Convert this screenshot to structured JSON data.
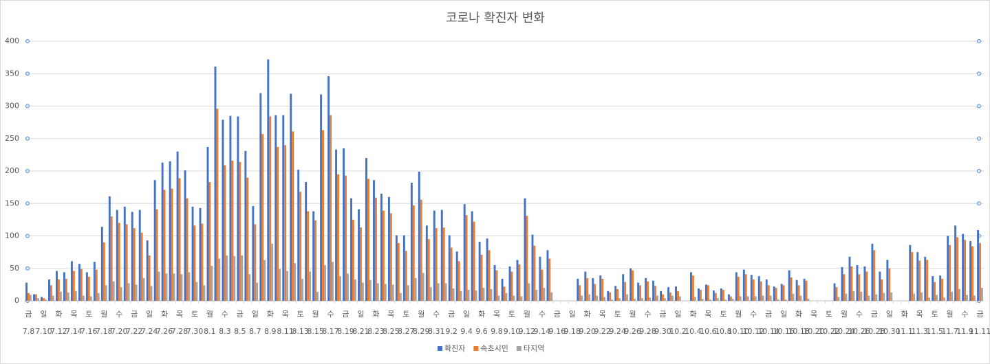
{
  "chart_data": {
    "type": "bar",
    "title": "코로나 확진자 변화",
    "categories": [
      "7.8",
      null,
      "7.10",
      null,
      "7.12",
      null,
      "7.14",
      null,
      "7.16",
      null,
      "7.18",
      null,
      "7.20",
      null,
      "7.22",
      null,
      "7.24",
      null,
      "7.26",
      null,
      "7.28",
      null,
      "7.30",
      null,
      "8.1",
      null,
      "8.3",
      null,
      "8.5",
      null,
      "8.7",
      null,
      "8.9",
      null,
      "8.11",
      null,
      "8.13",
      null,
      "8.15",
      null,
      "8.17",
      null,
      "8.19",
      null,
      "8.21",
      null,
      "8.23",
      null,
      "8.25",
      null,
      "8.27",
      null,
      "8.29",
      null,
      "8.31",
      null,
      "9.2",
      null,
      "9.4",
      null,
      "9.6",
      null,
      "9.8",
      null,
      "9.10",
      null,
      "9.12",
      null,
      "9.14",
      null,
      "9.16",
      null,
      "9.18",
      null,
      "9.20",
      null,
      "9.22",
      null,
      "9.24",
      null,
      "9.26",
      null,
      "9.28",
      null,
      "9.30",
      null,
      "10.2",
      null,
      "10.4",
      null,
      "10.6",
      null,
      "10.8",
      null,
      "10.10",
      null,
      "10.12",
      null,
      "10.14",
      null,
      "10.16",
      null,
      "10.18",
      null,
      "10.20",
      null,
      "10.22",
      null,
      "10.24",
      null,
      "10.26",
      null,
      "10.28",
      null,
      "10.30",
      null,
      "11.1",
      null,
      "11.3",
      null,
      "11.5",
      null,
      "11.7",
      null,
      "11.9",
      null,
      "11.11"
    ],
    "weekdays": [
      "금",
      null,
      "일",
      null,
      "화",
      null,
      "목",
      null,
      "토",
      null,
      "월",
      null,
      "수",
      null,
      "금",
      null,
      "일",
      null,
      "화",
      null,
      "목",
      null,
      "토",
      null,
      "월",
      null,
      "수",
      null,
      "금",
      null,
      "일",
      null,
      "화",
      null,
      "목",
      null,
      "토",
      null,
      "월",
      null,
      "수",
      null,
      "금",
      null,
      "일",
      null,
      "화",
      null,
      "목",
      null,
      "토",
      null,
      "월",
      null,
      "수",
      null,
      "금",
      null,
      "일",
      null,
      "화",
      null,
      "목",
      null,
      "토",
      null,
      "월",
      null,
      "수",
      null,
      "금",
      null,
      "일",
      null,
      "화",
      null,
      "목",
      null,
      "토",
      null,
      "월",
      null,
      "수",
      null,
      "금",
      null,
      "일",
      null,
      "화",
      null,
      "목",
      null,
      "토",
      null,
      "월",
      null,
      "수",
      null,
      "금",
      null,
      "일",
      null,
      "화",
      null,
      "목",
      null,
      "토",
      null,
      "월",
      null,
      "수",
      null,
      "금",
      null,
      "일",
      null,
      "화",
      null,
      "목",
      null,
      "토",
      null,
      "월",
      null,
      "수",
      null,
      "금"
    ],
    "series": [
      {
        "name": "확진자",
        "color": "#4472c4",
        "values": [
          28,
          10,
          6,
          33,
          46,
          44,
          61,
          57,
          44,
          60,
          114,
          161,
          140,
          145,
          137,
          140,
          93,
          186,
          213,
          215,
          230,
          201,
          145,
          143,
          237,
          361,
          279,
          285,
          284,
          231,
          146,
          320,
          372,
          286,
          286,
          319,
          202,
          183,
          138,
          318,
          346,
          233,
          235,
          158,
          141,
          220,
          186,
          165,
          160,
          101,
          101,
          182,
          199,
          116,
          139,
          140,
          101,
          76,
          149,
          138,
          91,
          96,
          55,
          34,
          53,
          63,
          158,
          102,
          68,
          78,
          null,
          null,
          null,
          34,
          45,
          35,
          39,
          15,
          23,
          41,
          50,
          28,
          35,
          31,
          15,
          21,
          22,
          null,
          44,
          19,
          25,
          16,
          19,
          10,
          44,
          48,
          40,
          38,
          33,
          22,
          26,
          47,
          32,
          34,
          null,
          null,
          null,
          27,
          52,
          68,
          55,
          53,
          88,
          45,
          63,
          null,
          null,
          86,
          75,
          68,
          38,
          39,
          100,
          116,
          103,
          92,
          109
        ]
      },
      {
        "name": "속초시민",
        "color": "#ed7d31",
        "values": [
          12,
          10,
          4,
          24,
          33,
          34,
          46,
          49,
          37,
          48,
          90,
          130,
          120,
          118,
          112,
          105,
          70,
          141,
          171,
          173,
          189,
          158,
          116,
          119,
          183,
          296,
          209,
          216,
          214,
          190,
          118,
          257,
          284,
          237,
          240,
          261,
          168,
          138,
          124,
          263,
          286,
          195,
          193,
          125,
          113,
          188,
          159,
          139,
          135,
          89,
          77,
          147,
          156,
          95,
          112,
          113,
          82,
          61,
          132,
          122,
          71,
          78,
          47,
          22,
          45,
          56,
          131,
          85,
          48,
          65,
          null,
          null,
          null,
          24,
          35,
          26,
          34,
          13,
          18,
          29,
          47,
          24,
          30,
          23,
          10,
          13,
          15,
          null,
          39,
          17,
          24,
          12,
          17,
          7,
          37,
          41,
          33,
          30,
          24,
          20,
          24,
          36,
          24,
          31,
          null,
          null,
          null,
          21,
          41,
          53,
          41,
          45,
          78,
          33,
          50,
          null,
          null,
          75,
          62,
          63,
          29,
          34,
          86,
          98,
          94,
          84,
          89
        ]
      },
      {
        "name": "타지역",
        "color": "#a5a5a5",
        "values": [
          9,
          4,
          2,
          8,
          14,
          13,
          15,
          8,
          7,
          12,
          24,
          30,
          21,
          27,
          25,
          35,
          23,
          45,
          42,
          42,
          41,
          44,
          29,
          24,
          54,
          65,
          70,
          69,
          70,
          41,
          28,
          63,
          88,
          49,
          46,
          58,
          34,
          45,
          14,
          55,
          60,
          38,
          42,
          33,
          28,
          32,
          27,
          26,
          25,
          12,
          24,
          35,
          43,
          21,
          27,
          27,
          19,
          15,
          17,
          16,
          20,
          18,
          8,
          12,
          8,
          7,
          27,
          17,
          20,
          13,
          null,
          null,
          null,
          8,
          10,
          8,
          6,
          2,
          4,
          10,
          3,
          4,
          5,
          8,
          4,
          8,
          7,
          null,
          6,
          3,
          2,
          4,
          2,
          3,
          7,
          7,
          7,
          8,
          8,
          2,
          2,
          11,
          8,
          3,
          null,
          null,
          null,
          6,
          11,
          15,
          14,
          8,
          10,
          12,
          13,
          null,
          null,
          11,
          13,
          5,
          9,
          5,
          14,
          18,
          9,
          8,
          20
        ]
      }
    ],
    "ylim": [
      0,
      400
    ],
    "yticks": [
      0,
      50,
      100,
      150,
      200,
      250,
      300,
      350,
      400
    ],
    "grid": true,
    "legend": "bottom"
  }
}
